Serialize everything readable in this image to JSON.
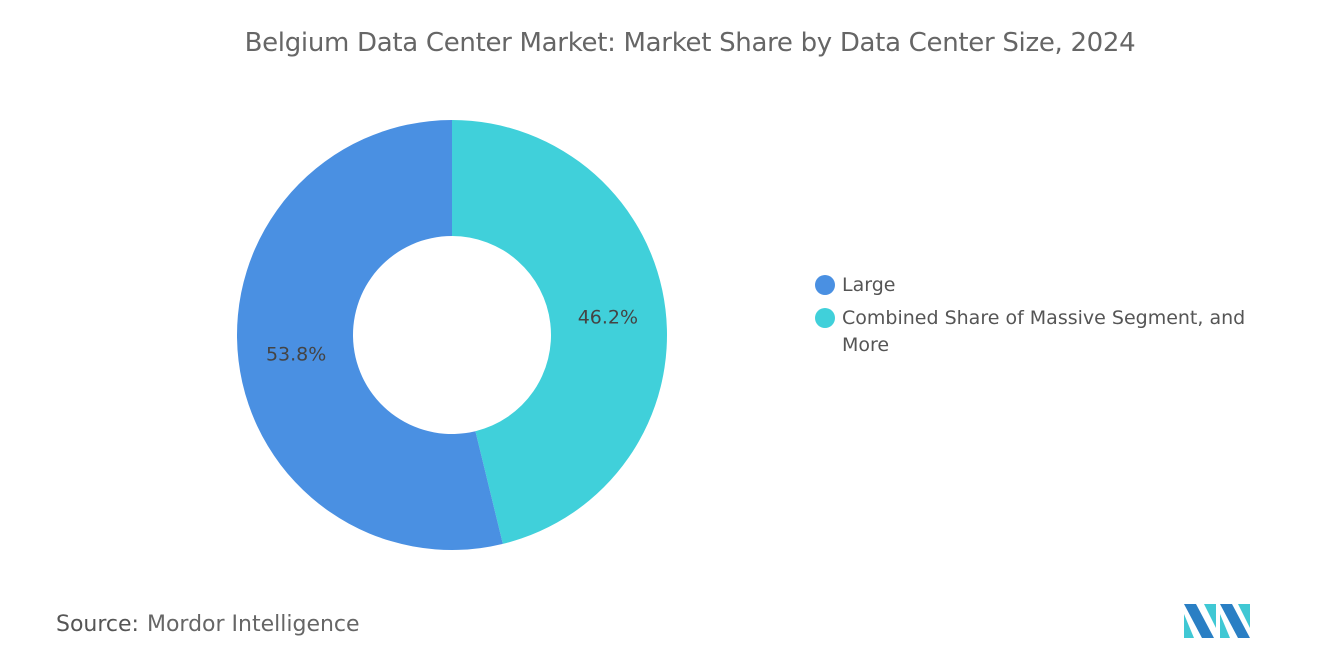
{
  "title": "Belgium Data Center Market: Market Share by Data Center Size, 2024",
  "chart_data": {
    "type": "pie",
    "donut": true,
    "title": "Belgium Data Center Market: Market Share by Data Center Size, 2024",
    "categories": [
      "Combined Share of Massive Segment, and More",
      "Large"
    ],
    "values": [
      46.2,
      53.8
    ],
    "labels": [
      "46.2%",
      "53.8%"
    ],
    "colors": [
      "#40d0da",
      "#4a90e2"
    ],
    "legend_position": "right",
    "legend": [
      {
        "label": "Large",
        "color": "#4a90e2"
      },
      {
        "label": "Combined Share of Massive Segment, and More",
        "color": "#40d0da"
      }
    ]
  },
  "source": {
    "label": "Source:",
    "value": "Mordor Intelligence"
  },
  "logo": {
    "text": "Mordor Intelligence logo",
    "colors": [
      "#2a7fc4",
      "#40c8d4"
    ]
  }
}
